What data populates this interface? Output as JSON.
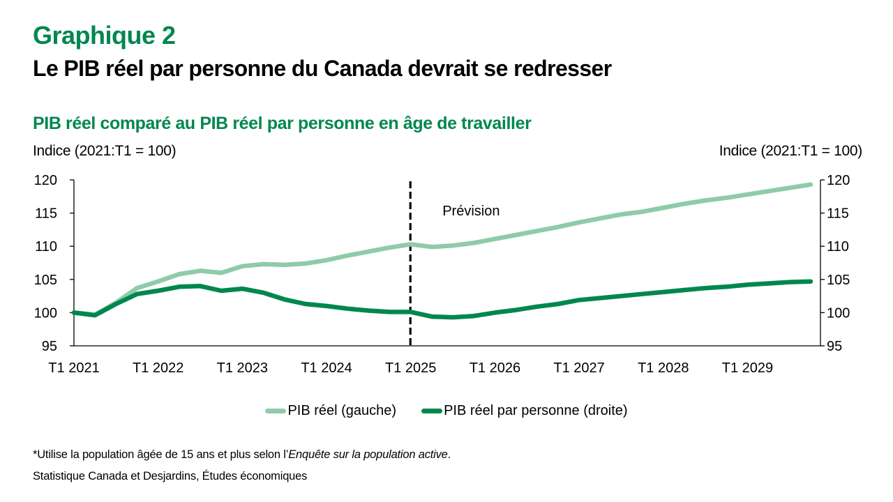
{
  "header": {
    "kicker": "Graphique 2",
    "title": "Le PIB réel par personne du Canada devrait se redresser"
  },
  "chart_data": {
    "type": "line",
    "title": "PIB réel comparé au PIB réel par personne en âge de travailler",
    "ylabel_left": "Indice (2021:T1 = 100)",
    "ylabel_right": "Indice (2021:T1 = 100)",
    "xlabel": "",
    "ylim": [
      95,
      120
    ],
    "ylim_right": [
      95,
      120
    ],
    "yticks": [
      95,
      100,
      105,
      110,
      115,
      120
    ],
    "x_tick_labels": [
      "T1 2021",
      "T1 2022",
      "T1 2023",
      "T1 2024",
      "T1 2025",
      "T1 2026",
      "T1 2027",
      "T1 2028",
      "T1 2029"
    ],
    "x": [
      "T1 2021",
      "T2 2021",
      "T3 2021",
      "T4 2021",
      "T1 2022",
      "T2 2022",
      "T3 2022",
      "T4 2022",
      "T1 2023",
      "T2 2023",
      "T3 2023",
      "T4 2023",
      "T1 2024",
      "T2 2024",
      "T3 2024",
      "T4 2024",
      "T1 2025",
      "T2 2025",
      "T3 2025",
      "T4 2025",
      "T1 2026",
      "T2 2026",
      "T3 2026",
      "T4 2026",
      "T1 2027",
      "T2 2027",
      "T3 2027",
      "T4 2027",
      "T1 2028",
      "T2 2028",
      "T3 2028",
      "T4 2028",
      "T1 2029",
      "T2 2029",
      "T3 2029",
      "T4 2029"
    ],
    "series": [
      {
        "name": "PIB réel (gauche)",
        "axis": "left",
        "color": "#8FCBA9",
        "values": [
          100.0,
          99.7,
          101.5,
          103.7,
          104.7,
          105.8,
          106.3,
          106.0,
          107.0,
          107.3,
          107.2,
          107.4,
          107.9,
          108.6,
          109.2,
          109.8,
          110.3,
          109.9,
          110.1,
          110.5,
          111.1,
          111.7,
          112.3,
          112.9,
          113.6,
          114.2,
          114.8,
          115.2,
          115.8,
          116.4,
          116.9,
          117.3,
          117.8,
          118.3,
          118.8,
          119.3
        ]
      },
      {
        "name": "PIB réel par personne (droite)",
        "axis": "right",
        "color": "#00874E",
        "values": [
          100.0,
          99.6,
          101.3,
          102.8,
          103.3,
          103.9,
          104.0,
          103.3,
          103.6,
          103.0,
          102.0,
          101.3,
          101.0,
          100.6,
          100.3,
          100.1,
          100.1,
          99.4,
          99.3,
          99.5,
          100.0,
          100.4,
          100.9,
          101.3,
          101.9,
          102.2,
          102.5,
          102.8,
          103.1,
          103.4,
          103.7,
          103.9,
          104.2,
          104.4,
          104.6,
          104.7
        ]
      }
    ],
    "annotations": [
      {
        "type": "vertical-dashed-line",
        "at": "T1 2025",
        "label": "Prévision"
      }
    ],
    "grid": false,
    "legend": "bottom-center"
  },
  "legend": {
    "items": [
      {
        "label": "PIB réel (gauche)",
        "color": "#8FCBA9"
      },
      {
        "label": "PIB réel par personne (droite)",
        "color": "#00874E"
      }
    ]
  },
  "footer": {
    "footnote_prefix": "*Utilise la population âgée de 15 ans et plus selon l’",
    "footnote_italic": "Enquête sur la population active",
    "footnote_suffix": ".",
    "source": "Statistique Canada et Desjardins, Études économiques"
  }
}
